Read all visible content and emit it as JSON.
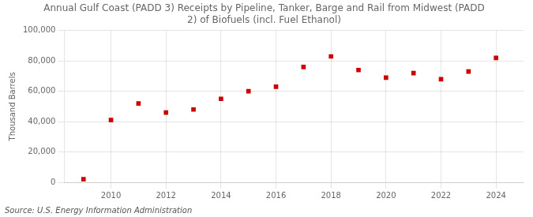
{
  "chart_data": {
    "type": "scatter",
    "title": "Annual Gulf Coast (PADD 3) Receipts by Pipeline, Tanker, Barge and Rail from Midwest (PADD\n2) of Biofuels (incl. Fuel Ethanol)",
    "ylabel": "Thousand Barrels",
    "source": "Source: U.S. Energy Information Administration",
    "x": [
      2009,
      2010,
      2011,
      2012,
      2013,
      2014,
      2015,
      2016,
      2017,
      2018,
      2019,
      2020,
      2021,
      2022,
      2023,
      2024
    ],
    "values": [
      2000,
      41000,
      52000,
      46000,
      48000,
      55000,
      60000,
      63000,
      76000,
      83000,
      74000,
      69000,
      72000,
      68000,
      73000,
      82000
    ],
    "color": "#CC0000",
    "marker": "square",
    "xlim": [
      2008.3,
      2025.0
    ],
    "xticks": [
      2010,
      2012,
      2014,
      2016,
      2018,
      2020,
      2022,
      2024
    ],
    "ylim": [
      0,
      100000
    ],
    "yticks": [
      0,
      {
        "value": 20000,
        "label": "20,000"
      },
      {
        "value": 40000,
        "label": "40,000"
      },
      {
        "value": 60000,
        "label": "60,000"
      },
      {
        "value": 80000,
        "label": "80,000"
      },
      {
        "value": 100000,
        "label": "100,000"
      }
    ],
    "grid": true
  }
}
